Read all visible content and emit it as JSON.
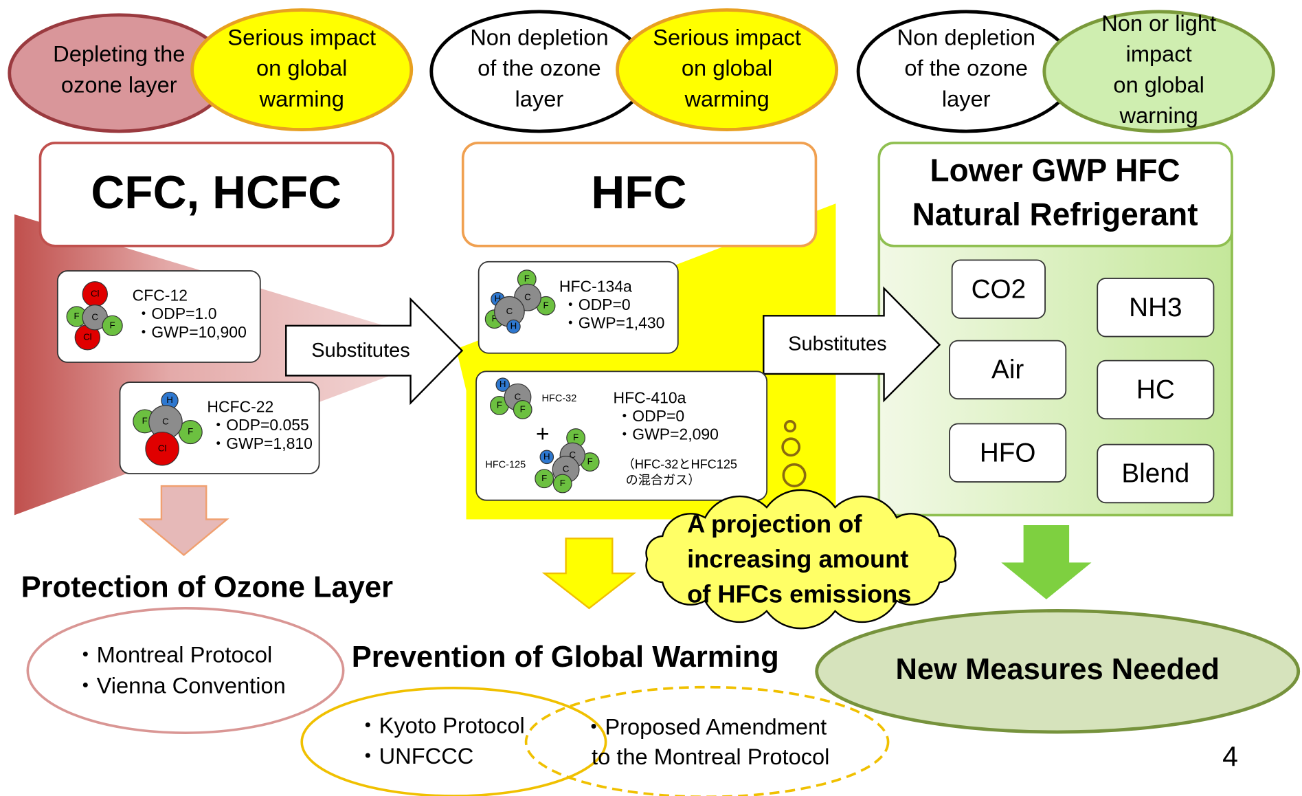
{
  "ozone_impacts": [
    {
      "lines": [
        "Depleting the",
        "ozone layer"
      ]
    },
    {
      "lines": [
        "Serious impact",
        "on global",
        "warming"
      ]
    },
    {
      "lines": [
        "Non depletion",
        "of the ozone",
        "layer"
      ]
    },
    {
      "lines": [
        "Serious impact",
        "on global",
        "warming"
      ]
    },
    {
      "lines": [
        "Non depletion",
        "of the ozone",
        "layer"
      ]
    },
    {
      "lines": [
        "Non or light",
        "impact",
        "on global",
        "warning"
      ]
    }
  ],
  "headers": [
    {
      "lines": [
        "CFC,  HCFC"
      ]
    },
    {
      "lines": [
        "HFC"
      ]
    },
    {
      "lines": [
        "Lower GWP HFC",
        "Natural Refrigerant"
      ]
    }
  ],
  "compounds": [
    {
      "name": "CFC-12",
      "properties": [
        "・ODP=1.0",
        "・GWP=10,900"
      ],
      "atoms": [
        "F",
        "Cl",
        "Cl",
        "C",
        "F"
      ]
    },
    {
      "name": "HCFC-22",
      "properties": [
        "・ODP=0.055",
        "・GWP=1,810"
      ],
      "atoms": [
        "H",
        "F",
        "F",
        "C",
        "Cl"
      ]
    },
    {
      "name": "HFC-134a",
      "properties": [
        "・ODP=0",
        "・GWP=1,430"
      ],
      "atoms": [
        "F",
        "F",
        "C",
        "H",
        "F",
        "C",
        "H"
      ]
    },
    {
      "name": "HFC-410a",
      "properties": [
        "・ODP=0",
        "・GWP=2,090"
      ],
      "note": [
        "（HFC-32とHFC125",
        "の混合ガス）"
      ]
    }
  ],
  "mixture": {
    "components": [
      {
        "name": "HFC-32",
        "atoms": [
          "H",
          "F",
          "C",
          "F"
        ]
      },
      {
        "name": "HFC-125",
        "atoms": [
          "F",
          "F",
          "C",
          "H",
          "C",
          "F",
          "F"
        ]
      }
    ],
    "plus": "+"
  },
  "substitutes": [
    "Substitutes",
    "Substitutes"
  ],
  "alternatives": [
    "CO2",
    "Air",
    "HFO",
    "NH3",
    "HC",
    "Blend"
  ],
  "projection": [
    "A projection of",
    "increasing amount",
    "of HFCs emissions"
  ],
  "ozone_protection": {
    "title": "Protection of Ozone Layer",
    "items": [
      "・Montreal Protocol",
      "・Vienna Convention"
    ]
  },
  "global_warming": {
    "title": "Prevention of Global Warming",
    "items": [
      "・Kyoto Protocol",
      "・UNFCCC"
    ],
    "proposal": [
      "・Proposed Amendment",
      "to the Montreal Protocol"
    ]
  },
  "new_measures": "New Measures Needed",
  "page_number": "4"
}
